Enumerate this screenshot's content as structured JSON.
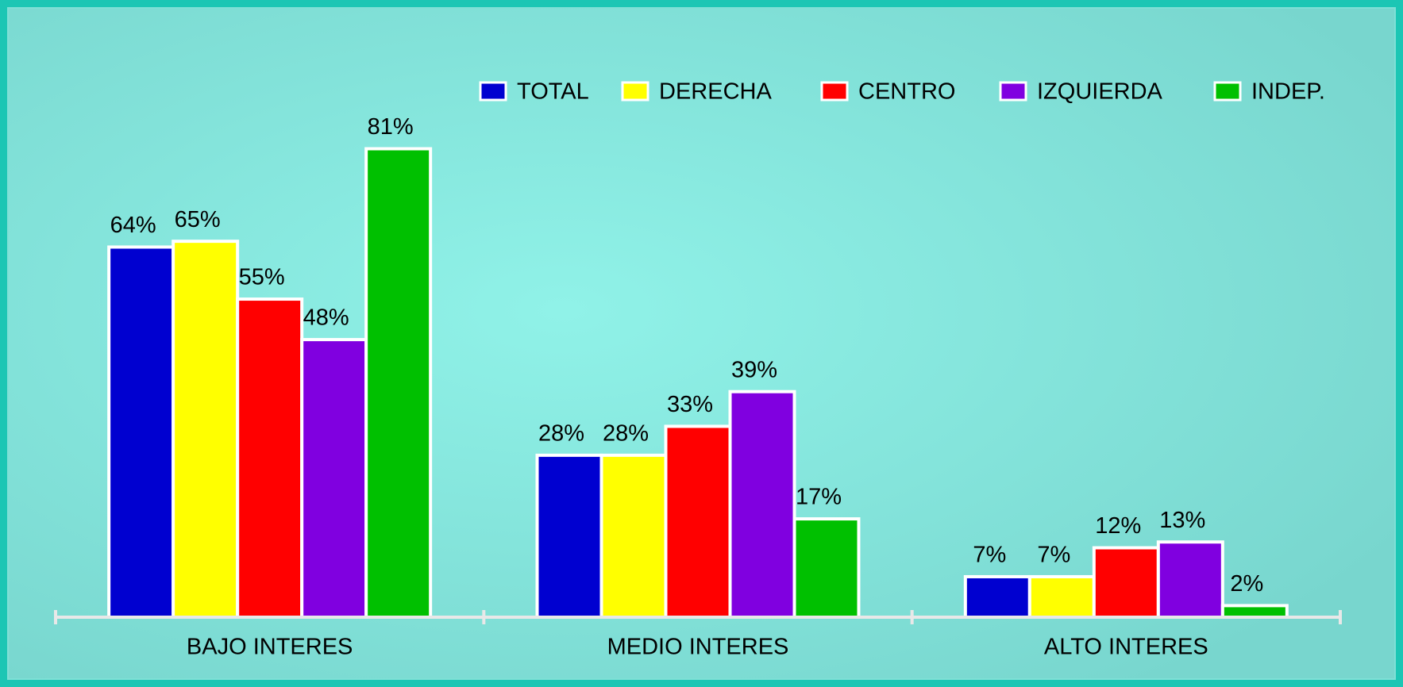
{
  "chart_data": {
    "type": "bar",
    "categories": [
      "BAJO INTERES",
      "MEDIO INTERES",
      "ALTO INTERES"
    ],
    "series": [
      {
        "name": "TOTAL",
        "color": "#0000d0",
        "values": [
          64,
          28,
          7
        ],
        "value_labels": [
          "64%",
          "28%",
          "7%"
        ]
      },
      {
        "name": "DERECHA",
        "color": "#ffff00",
        "values": [
          65,
          28,
          7
        ],
        "value_labels": [
          "65%",
          "28%",
          "7%"
        ]
      },
      {
        "name": "CENTRO",
        "color": "#ff0000",
        "values": [
          55,
          33,
          12
        ],
        "value_labels": [
          "55%",
          "33%",
          "12%"
        ]
      },
      {
        "name": "IZQUIERDA",
        "color": "#8000e0",
        "values": [
          48,
          39,
          13
        ],
        "value_labels": [
          "48%",
          "39%",
          "13%"
        ]
      },
      {
        "name": "INDEP.",
        "color": "#00c000",
        "values": [
          81,
          17,
          2
        ],
        "value_labels": [
          "81%",
          "17%",
          "2%"
        ]
      }
    ],
    "legend": "top-right"
  }
}
